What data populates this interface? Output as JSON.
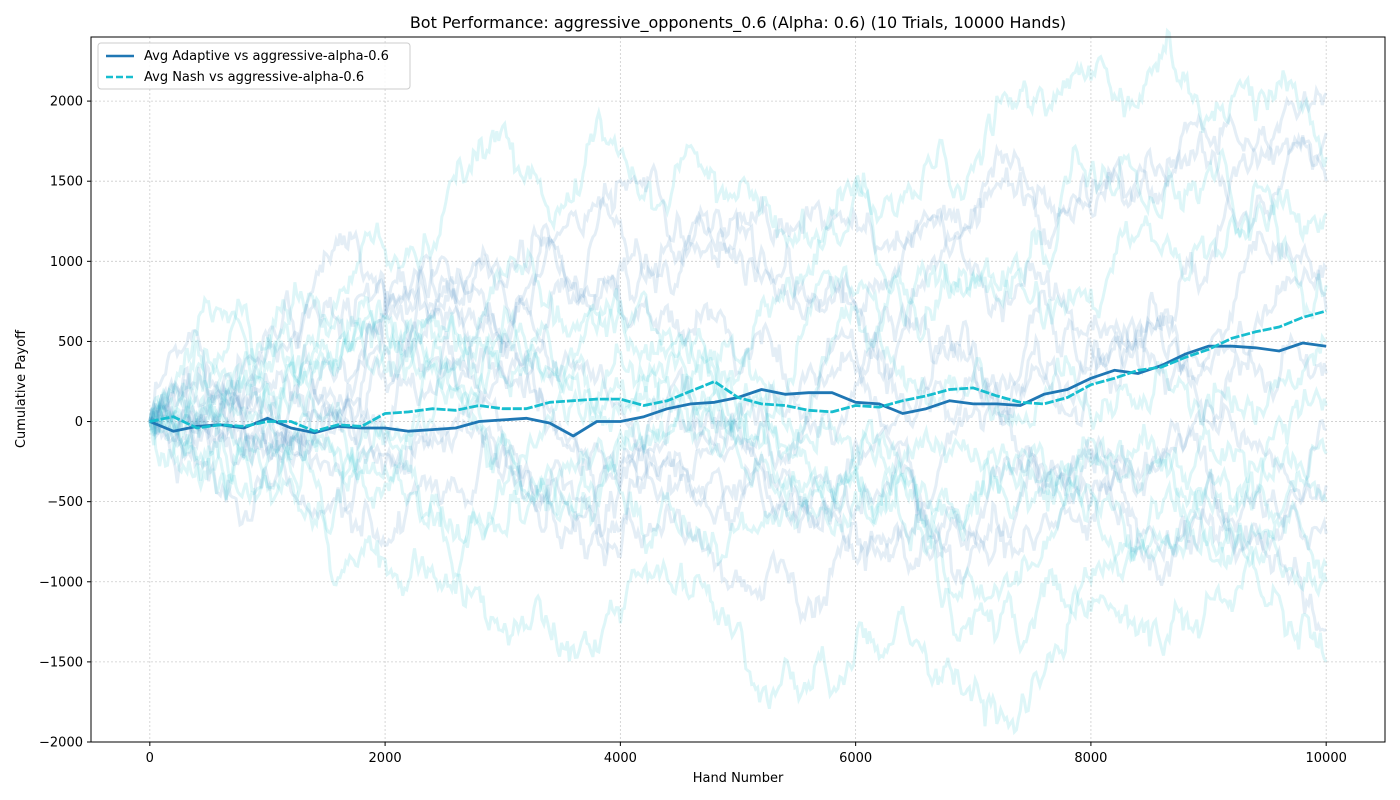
{
  "chart_data": {
    "type": "line",
    "title": "Bot Performance: aggressive_opponents_0.6 (Alpha: 0.6) (10 Trials, 10000 Hands)",
    "xlabel": "Hand Number",
    "ylabel": "Cumulative Payoff",
    "xlim": [
      -500,
      10500
    ],
    "ylim": [
      -2000,
      2400
    ],
    "xticks": [
      0,
      2000,
      4000,
      6000,
      8000,
      10000
    ],
    "yticks": [
      -2000,
      -1500,
      -1000,
      -500,
      0,
      500,
      1000,
      1500,
      2000
    ],
    "xtick_labels": [
      "0",
      "2000",
      "4000",
      "6000",
      "8000",
      "10000"
    ],
    "ytick_labels": [
      "−2000",
      "−1500",
      "−1000",
      "−500",
      "0",
      "500",
      "1000",
      "1500",
      "2000"
    ],
    "grid": true,
    "legend_position": "top-left",
    "colors": {
      "adaptive": "#1f77b4",
      "nash": "#17becf"
    },
    "series": [
      {
        "name": "Avg Adaptive vs aggressive-alpha-0.6",
        "style": "solid",
        "color": "#1f77b4",
        "x": [
          0,
          200,
          400,
          600,
          800,
          1000,
          1200,
          1400,
          1600,
          1800,
          2000,
          2200,
          2400,
          2600,
          2800,
          3000,
          3200,
          3400,
          3600,
          3800,
          4000,
          4200,
          4400,
          4600,
          4800,
          5000,
          5200,
          5400,
          5600,
          5800,
          6000,
          6200,
          6400,
          6600,
          6800,
          7000,
          7200,
          7400,
          7600,
          7800,
          8000,
          8200,
          8400,
          8600,
          8800,
          9000,
          9200,
          9400,
          9600,
          9800,
          10000
        ],
        "values": [
          0,
          -60,
          -30,
          -20,
          -40,
          20,
          -40,
          -70,
          -30,
          -40,
          -40,
          -60,
          -50,
          -40,
          0,
          10,
          20,
          -10,
          -90,
          0,
          0,
          30,
          80,
          110,
          120,
          150,
          200,
          170,
          180,
          180,
          120,
          110,
          50,
          80,
          130,
          110,
          110,
          100,
          170,
          200,
          270,
          320,
          300,
          350,
          420,
          470,
          470,
          460,
          440,
          490,
          470
        ]
      },
      {
        "name": "Avg Nash vs aggressive-alpha-0.6",
        "style": "dashed",
        "color": "#17becf",
        "x": [
          0,
          200,
          400,
          600,
          800,
          1000,
          1200,
          1400,
          1600,
          1800,
          2000,
          2200,
          2400,
          2600,
          2800,
          3000,
          3200,
          3400,
          3600,
          3800,
          4000,
          4200,
          4400,
          4600,
          4800,
          5000,
          5200,
          5400,
          5600,
          5800,
          6000,
          6200,
          6400,
          6600,
          6800,
          7000,
          7200,
          7400,
          7600,
          7800,
          8000,
          8200,
          8400,
          8600,
          8800,
          9000,
          9200,
          9400,
          9600,
          9800,
          10000
        ],
        "values": [
          0,
          30,
          -40,
          -20,
          -30,
          0,
          0,
          -60,
          -20,
          -30,
          50,
          60,
          80,
          70,
          100,
          80,
          80,
          120,
          130,
          140,
          140,
          100,
          130,
          190,
          250,
          150,
          110,
          100,
          70,
          60,
          100,
          90,
          130,
          160,
          200,
          210,
          160,
          120,
          110,
          150,
          230,
          270,
          320,
          340,
          400,
          450,
          520,
          560,
          590,
          650,
          690
        ]
      }
    ]
  }
}
